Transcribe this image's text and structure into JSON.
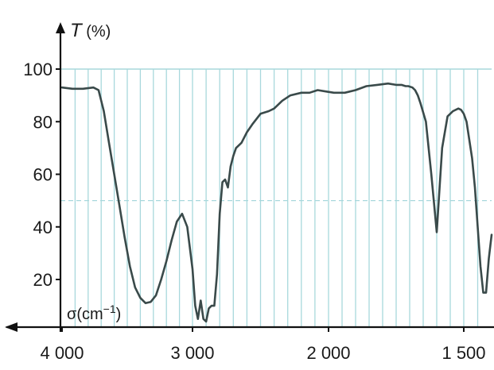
{
  "chart_data": {
    "type": "line",
    "ylabel_symbol": "T",
    "ylabel_unit": " (%)",
    "xlabel_prefix": "σ(cm",
    "xlabel_exp": "−1",
    "xlabel_suffix": ")",
    "x_reversed": true,
    "x_scale_note": "linear above 2000 cm−1, halved scale below 2000 cm−1",
    "xlim": [
      4000,
      1400
    ],
    "ylim": [
      0,
      110
    ],
    "x_ticks": [
      {
        "value": 4000,
        "label": "4 000"
      },
      {
        "value": 3000,
        "label": "3 000"
      },
      {
        "value": 2000,
        "label": "2 000"
      },
      {
        "value": 1500,
        "label": "1 500"
      }
    ],
    "y_ticks": [
      {
        "value": 20,
        "label": "20"
      },
      {
        "value": 40,
        "label": "40"
      },
      {
        "value": 60,
        "label": "60"
      },
      {
        "value": 80,
        "label": "80"
      },
      {
        "value": 100,
        "label": "100"
      }
    ],
    "grid": true,
    "grid_color": "#a8d8dc",
    "line_color": "#3a4a4a",
    "axis_color": "#111111",
    "series": [
      {
        "x": [
          4000,
          3920,
          3840,
          3760,
          3720,
          3680,
          3640,
          3600,
          3560,
          3520,
          3480,
          3440,
          3400,
          3360,
          3320,
          3280,
          3240,
          3200,
          3160,
          3120,
          3080,
          3040,
          3000,
          2980,
          2960,
          2940,
          2920,
          2900,
          2880,
          2860,
          2840,
          2820,
          2800,
          2780,
          2760,
          2740,
          2720,
          2700,
          2680,
          2640,
          2600,
          2560,
          2500,
          2440,
          2400,
          2340,
          2280,
          2200,
          2140,
          2080,
          2020,
          1980,
          1940,
          1900,
          1860,
          1820,
          1780,
          1750,
          1730,
          1715,
          1705,
          1690,
          1680,
          1670,
          1660,
          1640,
          1620,
          1600,
          1580,
          1560,
          1540,
          1520,
          1510,
          1500,
          1490,
          1480,
          1470,
          1460,
          1450,
          1440,
          1430,
          1420,
          1410,
          1400
        ],
        "y": [
          93,
          92.5,
          92.5,
          93,
          92,
          84,
          72,
          60,
          48,
          36,
          25,
          17,
          13,
          11,
          11.5,
          14,
          20,
          27,
          35,
          42,
          45,
          40,
          24,
          10,
          5,
          12,
          5,
          4,
          9,
          10,
          10,
          22,
          45,
          57,
          58,
          55,
          63,
          67,
          70,
          72,
          76,
          79,
          83,
          84,
          85,
          88,
          90,
          91,
          91,
          92,
          91.5,
          91,
          91,
          92,
          93.5,
          94,
          94.5,
          94,
          94,
          93.5,
          93.5,
          93,
          92,
          90,
          87,
          80,
          60,
          38,
          70,
          82,
          84,
          85,
          84.5,
          83,
          80,
          73,
          66,
          55,
          40,
          25,
          15,
          15,
          28,
          37
        ]
      }
    ]
  }
}
